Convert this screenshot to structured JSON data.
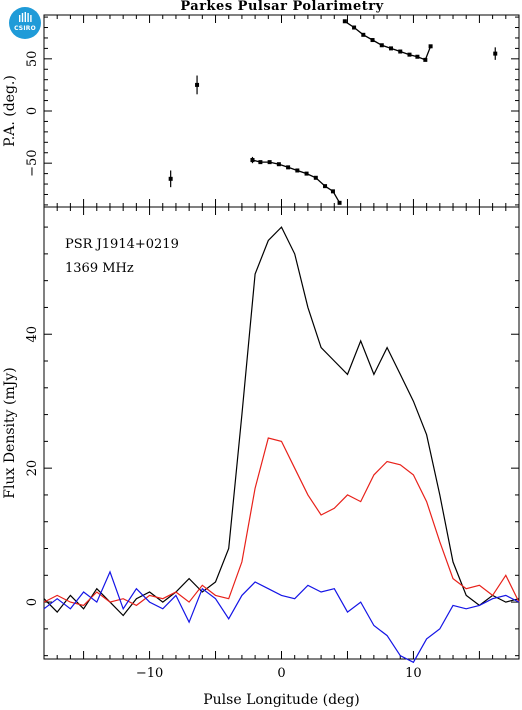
{
  "logo": {
    "text": "CSIRO",
    "color": "#1f9bd8"
  },
  "title": "Parkes Pulsar Polarimetry",
  "annotations": [
    "PSR J1914+0219",
    "1369 MHz"
  ],
  "chart_data": [
    {
      "type": "scatter",
      "panel": "top",
      "ylabel": "P.A. (deg.)",
      "xlim": [
        -18,
        18
      ],
      "ylim": [
        -92,
        92
      ],
      "yticks": [
        -50,
        0,
        50
      ],
      "xticks": [
        -10,
        0,
        10
      ],
      "points": [
        {
          "x": -8.4,
          "y": -65,
          "err": 8
        },
        {
          "x": -6.4,
          "y": 25,
          "err": 9
        },
        {
          "x": -2.2,
          "y": -47,
          "err": 3
        },
        {
          "x": 16.2,
          "y": 55,
          "err": 6
        }
      ],
      "segments": [
        [
          {
            "x": -2.2,
            "y": -47
          },
          {
            "x": -1.6,
            "y": -49
          },
          {
            "x": -0.9,
            "y": -49
          },
          {
            "x": -0.2,
            "y": -51
          },
          {
            "x": 0.5,
            "y": -54
          },
          {
            "x": 1.2,
            "y": -57
          },
          {
            "x": 1.9,
            "y": -60
          },
          {
            "x": 2.6,
            "y": -64
          },
          {
            "x": 3.3,
            "y": -72
          },
          {
            "x": 3.9,
            "y": -77
          },
          {
            "x": 4.4,
            "y": -88
          }
        ],
        [
          {
            "x": 4.8,
            "y": 86
          },
          {
            "x": 5.5,
            "y": 80
          },
          {
            "x": 6.2,
            "y": 73
          },
          {
            "x": 6.9,
            "y": 68
          },
          {
            "x": 7.6,
            "y": 63
          },
          {
            "x": 8.3,
            "y": 60
          },
          {
            "x": 9.0,
            "y": 57
          },
          {
            "x": 9.7,
            "y": 54
          },
          {
            "x": 10.3,
            "y": 52
          },
          {
            "x": 10.9,
            "y": 49
          },
          {
            "x": 11.3,
            "y": 62
          }
        ]
      ]
    },
    {
      "type": "line",
      "panel": "bottom",
      "xlabel": "Pulse Longitude (deg)",
      "ylabel": "Flux Density (mJy)",
      "xlim": [
        -18,
        18
      ],
      "ylim": [
        -8.5,
        59
      ],
      "xticks": [
        -10,
        0,
        10
      ],
      "yticks": [
        0,
        20,
        40
      ],
      "x": [
        -18,
        -17,
        -16,
        -15,
        -14,
        -13,
        -12,
        -11,
        -10,
        -9,
        -8,
        -7,
        -6,
        -5,
        -4,
        -3,
        -2,
        -1,
        0,
        1,
        2,
        3,
        4,
        5,
        6,
        7,
        8,
        9,
        10,
        11,
        12,
        13,
        14,
        15,
        16,
        17,
        18
      ],
      "series": [
        {
          "color": "#000000",
          "values": [
            0.5,
            -1.5,
            1.0,
            -1.0,
            2.0,
            0.0,
            -2.0,
            0.5,
            1.5,
            0.0,
            1.5,
            3.5,
            1.5,
            3.0,
            8.0,
            28.0,
            49.0,
            54.0,
            56.0,
            52.0,
            44.0,
            38.0,
            36.0,
            34.0,
            39.0,
            34.0,
            38.0,
            34.0,
            30.0,
            25.0,
            16.0,
            6.0,
            1.0,
            -0.5,
            1.0,
            0.0,
            0.5
          ]
        },
        {
          "color": "#e8211a",
          "values": [
            0.0,
            1.0,
            0.0,
            -0.5,
            1.5,
            0.0,
            0.5,
            -0.5,
            1.0,
            0.5,
            1.5,
            0.0,
            2.5,
            1.0,
            0.5,
            6.0,
            17.0,
            24.5,
            24.0,
            20.0,
            16.0,
            13.0,
            14.0,
            16.0,
            15.0,
            19.0,
            21.0,
            20.5,
            19.0,
            15.0,
            9.0,
            3.5,
            2.0,
            2.5,
            1.0,
            4.0,
            0.0
          ]
        },
        {
          "color": "#1414e6",
          "values": [
            -1.0,
            0.5,
            -1.0,
            1.5,
            0.0,
            4.5,
            -1.0,
            2.0,
            0.0,
            -1.0,
            1.0,
            -3.0,
            2.0,
            0.5,
            -2.5,
            1.0,
            3.0,
            2.0,
            1.0,
            0.5,
            2.5,
            1.5,
            2.0,
            -1.5,
            0.0,
            -3.5,
            -5.0,
            -8.0,
            -9.0,
            -5.5,
            -4.0,
            -0.5,
            -1.0,
            -0.5,
            0.5,
            1.0,
            0.0
          ]
        }
      ]
    }
  ]
}
